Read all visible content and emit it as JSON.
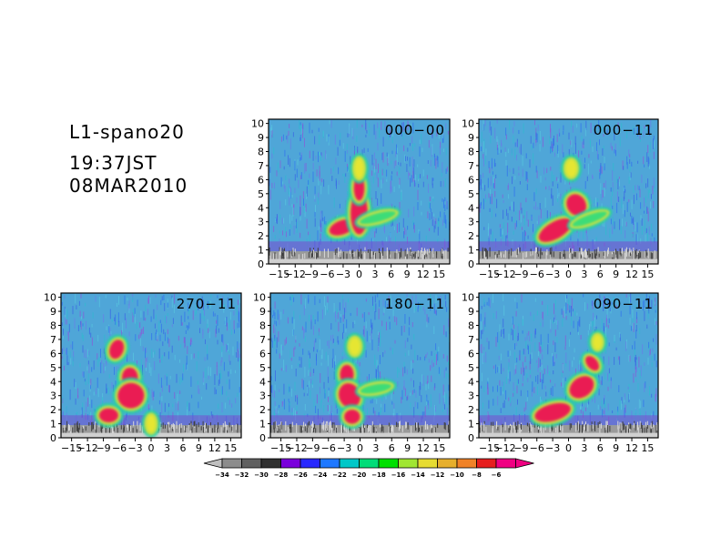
{
  "header": {
    "title": "L1-spano20",
    "time": "19:37JST",
    "date": "08MAR2010"
  },
  "chart_data": [
    {
      "type": "heatmap",
      "label": "000-00",
      "x_ticks": [
        "-15",
        "-12",
        "-9",
        "-6",
        "-3",
        "0",
        "3",
        "6",
        "9",
        "12",
        "15"
      ],
      "y_ticks": [
        "0",
        "1",
        "2",
        "3",
        "4",
        "5",
        "6",
        "7",
        "8",
        "9",
        "10"
      ],
      "xlim": [
        -17,
        17
      ],
      "ylim": [
        0,
        10.3
      ],
      "echo": [
        {
          "x": -3.2,
          "y": 2.6,
          "rx": 2.5,
          "ry": 0.5,
          "rot": -20,
          "level": "red"
        },
        {
          "x": 0,
          "y": 3.6,
          "rx": 1.6,
          "ry": 1.5,
          "rot": 0,
          "level": "red"
        },
        {
          "x": 0,
          "y": 5.4,
          "rx": 1.0,
          "ry": 0.9,
          "rot": 0,
          "level": "red"
        },
        {
          "x": 0,
          "y": 6.8,
          "rx": 0.8,
          "ry": 0.7,
          "rot": 0,
          "level": "yellow"
        },
        {
          "x": 3.5,
          "y": 3.3,
          "rx": 3.5,
          "ry": 0.3,
          "rot": -15,
          "level": "green"
        }
      ]
    },
    {
      "type": "heatmap",
      "label": "000-11",
      "x_ticks": [
        "-15",
        "-12",
        "-9",
        "-6",
        "-3",
        "0",
        "3",
        "6",
        "9",
        "12",
        "15"
      ],
      "y_ticks": [
        "0",
        "1",
        "2",
        "3",
        "4",
        "5",
        "6",
        "7",
        "8",
        "9",
        "10"
      ],
      "xlim": [
        -17,
        17
      ],
      "ylim": [
        0,
        10.3
      ],
      "echo": [
        {
          "x": -2.5,
          "y": 2.4,
          "rx": 3.5,
          "ry": 0.6,
          "rot": -30,
          "level": "red"
        },
        {
          "x": 1.5,
          "y": 4.2,
          "rx": 1.8,
          "ry": 0.8,
          "rot": -30,
          "level": "red"
        },
        {
          "x": 0.5,
          "y": 6.8,
          "rx": 1.0,
          "ry": 0.6,
          "rot": 0,
          "level": "yellow"
        },
        {
          "x": 4.0,
          "y": 3.2,
          "rx": 3.5,
          "ry": 0.3,
          "rot": -20,
          "level": "green"
        }
      ]
    },
    {
      "type": "heatmap",
      "label": "270-11",
      "x_ticks": [
        "-15",
        "-12",
        "-9",
        "-6",
        "-3",
        "0",
        "3",
        "6",
        "9",
        "12",
        "15"
      ],
      "y_ticks": [
        "0",
        "1",
        "2",
        "3",
        "4",
        "5",
        "6",
        "7",
        "8",
        "9",
        "10"
      ],
      "xlim": [
        -17,
        17
      ],
      "ylim": [
        0,
        10.3
      ],
      "echo": [
        {
          "x": -6.5,
          "y": 6.3,
          "rx": 1.3,
          "ry": 0.7,
          "rot": 20,
          "level": "red"
        },
        {
          "x": -4.0,
          "y": 4.3,
          "rx": 1.5,
          "ry": 0.7,
          "rot": 0,
          "level": "red"
        },
        {
          "x": -3.8,
          "y": 3.0,
          "rx": 2.5,
          "ry": 0.9,
          "rot": -10,
          "level": "red"
        },
        {
          "x": -8.0,
          "y": 1.6,
          "rx": 1.8,
          "ry": 0.5,
          "rot": 0,
          "level": "red"
        },
        {
          "x": 0,
          "y": 1.0,
          "rx": 0.8,
          "ry": 0.6,
          "rot": 0,
          "level": "yellow"
        }
      ]
    },
    {
      "type": "heatmap",
      "label": "180-11",
      "x_ticks": [
        "-15",
        "-12",
        "-9",
        "-6",
        "-3",
        "0",
        "3",
        "6",
        "9",
        "12",
        "15"
      ],
      "y_ticks": [
        "0",
        "1",
        "2",
        "3",
        "4",
        "5",
        "6",
        "7",
        "8",
        "9",
        "10"
      ],
      "xlim": [
        -17,
        17
      ],
      "ylim": [
        0,
        10.3
      ],
      "echo": [
        {
          "x": -2.5,
          "y": 4.5,
          "rx": 1.3,
          "ry": 0.7,
          "rot": 0,
          "level": "red"
        },
        {
          "x": -2.0,
          "y": 3.0,
          "rx": 2.0,
          "ry": 0.9,
          "rot": -20,
          "level": "red"
        },
        {
          "x": -1.5,
          "y": 1.5,
          "rx": 1.5,
          "ry": 0.5,
          "rot": 0,
          "level": "red"
        },
        {
          "x": -1.0,
          "y": 6.5,
          "rx": 1.0,
          "ry": 0.6,
          "rot": 0,
          "level": "yellow"
        },
        {
          "x": 3.0,
          "y": 3.5,
          "rx": 3.0,
          "ry": 0.3,
          "rot": -10,
          "level": "green"
        }
      ]
    },
    {
      "type": "heatmap",
      "label": "090-11",
      "x_ticks": [
        "-15",
        "-12",
        "-9",
        "-6",
        "-3",
        "0",
        "3",
        "6",
        "9",
        "12",
        "15"
      ],
      "y_ticks": [
        "0",
        "1",
        "2",
        "3",
        "4",
        "5",
        "6",
        "7",
        "8",
        "9",
        "10"
      ],
      "xlim": [
        -17,
        17
      ],
      "ylim": [
        0,
        10.3
      ],
      "echo": [
        {
          "x": -3.0,
          "y": 1.8,
          "rx": 3.5,
          "ry": 0.6,
          "rot": -15,
          "level": "red"
        },
        {
          "x": 2.5,
          "y": 3.6,
          "rx": 2.5,
          "ry": 0.7,
          "rot": -35,
          "level": "red"
        },
        {
          "x": 4.5,
          "y": 5.3,
          "rx": 1.0,
          "ry": 0.6,
          "rot": -40,
          "level": "red"
        },
        {
          "x": 5.5,
          "y": 6.8,
          "rx": 0.8,
          "ry": 0.5,
          "rot": 0,
          "level": "yellow"
        }
      ]
    }
  ],
  "colorbar": {
    "labels": [
      "-34",
      "-32",
      "-30",
      "-28",
      "-26",
      "-24",
      "-22",
      "-20",
      "-18",
      "-16",
      "-14",
      "-12",
      "-10",
      "-8",
      "-6"
    ],
    "colors": [
      "#c0c0c0",
      "#8c8c8c",
      "#606060",
      "#303030",
      "#7a00dc",
      "#2828ff",
      "#1e78ff",
      "#00c8c8",
      "#00dc78",
      "#00e000",
      "#a0e632",
      "#e6dc32",
      "#e6af2d",
      "#f08228",
      "#e61e1e",
      "#f00082"
    ],
    "under_color": "#c0c0c0",
    "over_color": "#f00082"
  }
}
